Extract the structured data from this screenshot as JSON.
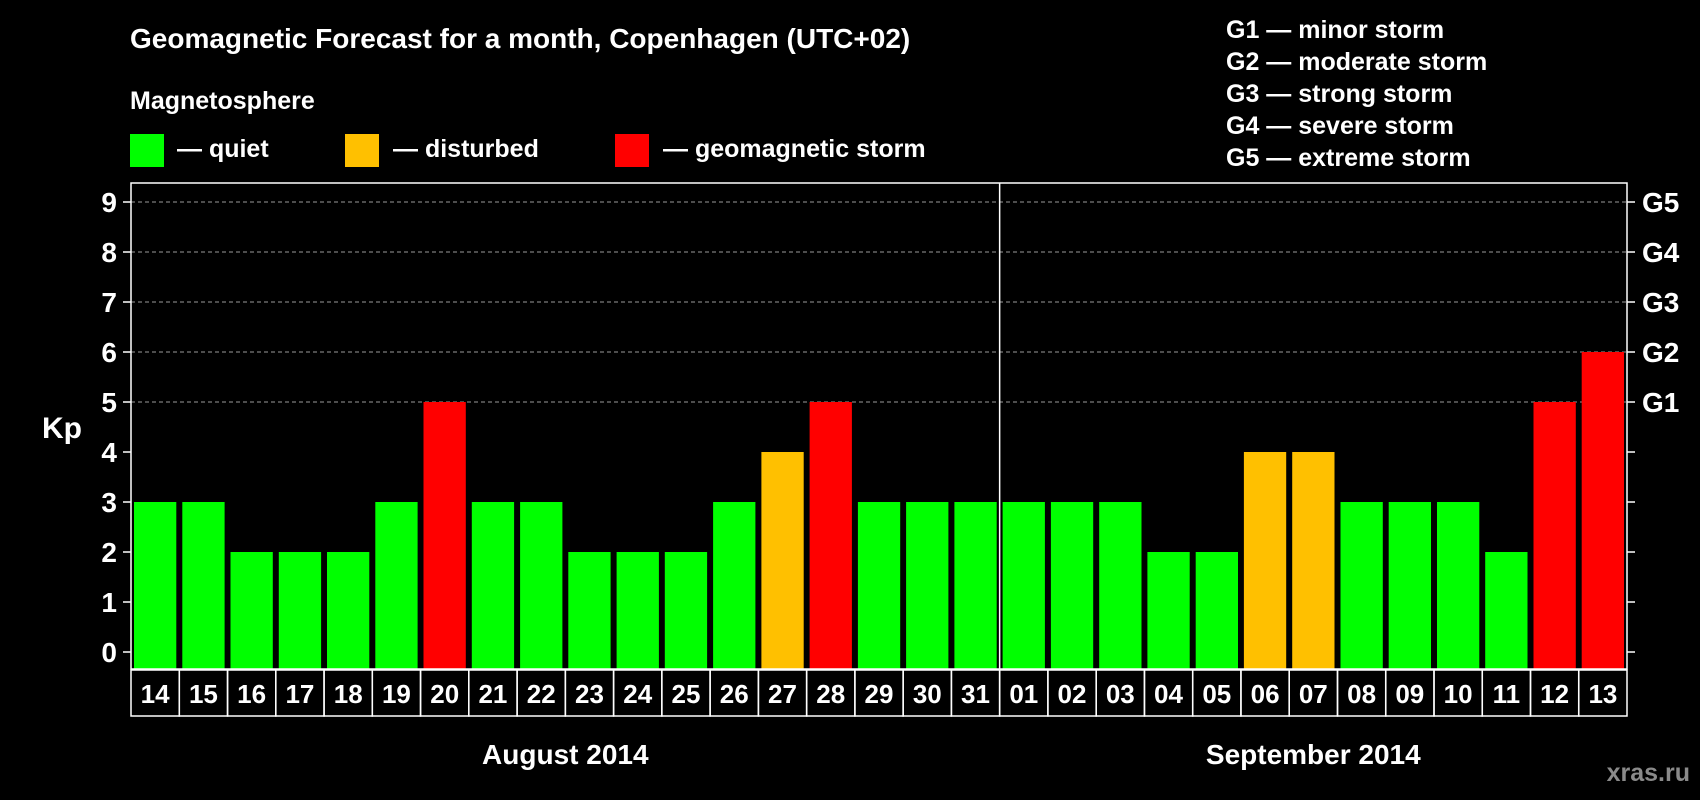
{
  "title": "Geomagnetic Forecast for a month, Copenhagen (UTC+02)",
  "legend": {
    "heading": "Magnetosphere",
    "items": [
      {
        "label": "— quiet",
        "color": "#00ff00"
      },
      {
        "label": "— disturbed",
        "color": "#ffc000"
      },
      {
        "label": "— geomagnetic storm",
        "color": "#ff0000"
      }
    ]
  },
  "storm_scale": [
    "G1 — minor storm",
    "G2 — moderate storm",
    "G3 — strong storm",
    "G4 — severe storm",
    "G5 — extreme storm"
  ],
  "watermark": "xras.ru",
  "chart_data": {
    "type": "bar",
    "title": "Geomagnetic Forecast for a month, Copenhagen (UTC+02)",
    "ylabel": "Kp",
    "ylim": [
      0,
      9
    ],
    "yticks": [
      "0",
      "1",
      "2",
      "3",
      "4",
      "5",
      "6",
      "7",
      "8",
      "9"
    ],
    "right_ticks": [
      {
        "label": "G1",
        "value": 5
      },
      {
        "label": "G2",
        "value": 6
      },
      {
        "label": "G3",
        "value": 7
      },
      {
        "label": "G4",
        "value": 8
      },
      {
        "label": "G5",
        "value": 9
      }
    ],
    "grid": true,
    "month_groups": [
      {
        "label": "August 2014",
        "count": 18
      },
      {
        "label": "September 2014",
        "count": 13
      }
    ],
    "categories": [
      "14",
      "15",
      "16",
      "17",
      "18",
      "19",
      "20",
      "21",
      "22",
      "23",
      "24",
      "25",
      "26",
      "27",
      "28",
      "29",
      "30",
      "31",
      "01",
      "02",
      "03",
      "04",
      "05",
      "06",
      "07",
      "08",
      "09",
      "10",
      "11",
      "12",
      "13"
    ],
    "values": [
      3,
      3,
      2,
      2,
      2,
      3,
      5,
      3,
      3,
      2,
      2,
      2,
      3,
      4,
      5,
      3,
      3,
      3,
      3,
      3,
      3,
      2,
      2,
      4,
      4,
      3,
      3,
      3,
      2,
      5,
      6
    ],
    "colors": {
      "quiet": "#00ff00",
      "disturbed": "#ffc000",
      "storm": "#ff0000"
    }
  }
}
